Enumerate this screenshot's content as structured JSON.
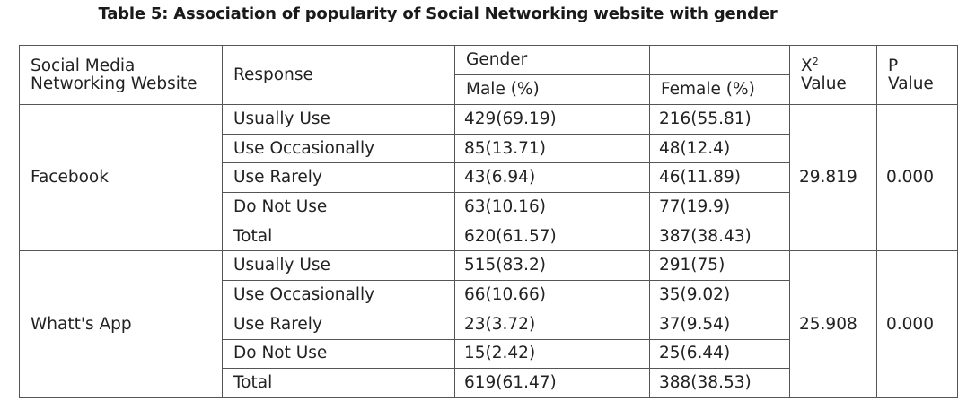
{
  "caption": "Table 5: Association of popularity of Social Networking website with gender",
  "header": {
    "col_website_line1": "Social Media",
    "col_website_line2": "Networking Website",
    "col_response": "Response",
    "col_gender": "Gender",
    "col_male": "Male (%)",
    "col_female": "Female (%)",
    "col_chi_symbol": "X",
    "col_chi_super": "2",
    "col_chi_value": "Value",
    "col_p_line1": "P",
    "col_p_line2": "Value"
  },
  "groups": [
    {
      "website": "Facebook",
      "chi_square": "29.819",
      "p_value": "0.000",
      "rows": [
        {
          "response": "Usually Use",
          "male": "429(69.19)",
          "female": "216(55.81)"
        },
        {
          "response": "Use Occasionally",
          "male": "85(13.71)",
          "female": "48(12.4)"
        },
        {
          "response": "Use Rarely",
          "male": "43(6.94)",
          "female": "46(11.89)"
        },
        {
          "response": "Do Not Use",
          "male": "63(10.16)",
          "female": "77(19.9)"
        },
        {
          "response": "Total",
          "male": "620(61.57)",
          "female": "387(38.43)"
        }
      ]
    },
    {
      "website": "Whatt's App",
      "chi_square": "25.908",
      "p_value": "0.000",
      "rows": [
        {
          "response": "Usually Use",
          "male": "515(83.2)",
          "female": "291(75)"
        },
        {
          "response": "Use Occasionally",
          "male": "66(10.66)",
          "female": "35(9.02)"
        },
        {
          "response": "Use Rarely",
          "male": "23(3.72)",
          "female": "37(9.54)"
        },
        {
          "response": "Do Not Use",
          "male": "15(2.42)",
          "female": "25(6.44)"
        },
        {
          "response": "Total",
          "male": "619(61.47)",
          "female": "388(38.53)"
        }
      ]
    }
  ]
}
